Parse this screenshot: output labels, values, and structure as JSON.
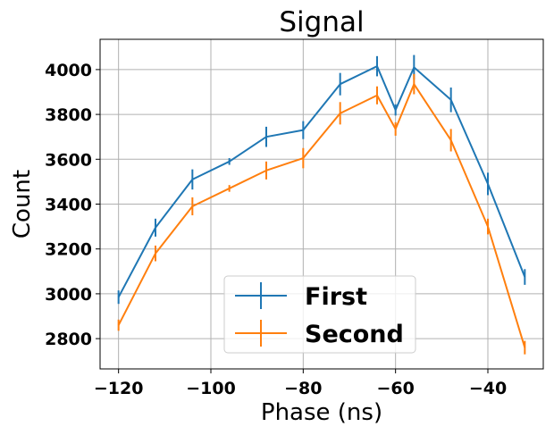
{
  "chart_data": {
    "type": "line",
    "title": "Signal",
    "xlabel": "Phase (ns)",
    "ylabel": "Count",
    "xlim": [
      -124,
      -28
    ],
    "ylim": [
      2665,
      4135
    ],
    "grid": true,
    "legend_placement": "bottom-center",
    "x_ticks": [
      -120,
      -100,
      -80,
      -60,
      -40
    ],
    "x_tick_labels": [
      "−120",
      "−100",
      "−80",
      "−60",
      "−40"
    ],
    "y_ticks": [
      2800,
      3000,
      3200,
      3400,
      3600,
      3800,
      4000
    ],
    "y_tick_labels": [
      "2800",
      "3000",
      "3200",
      "3400",
      "3600",
      "3800",
      "4000"
    ],
    "x": [
      -120,
      -112,
      -104,
      -96,
      -88,
      -80,
      -72,
      -64,
      -60,
      -56,
      -48,
      -40,
      -32
    ],
    "series": [
      {
        "name": "First",
        "color": "#1f77b4",
        "values": [
          2985,
          3295,
          3510,
          3590,
          3700,
          3730,
          3935,
          4015,
          3820,
          4010,
          3865,
          3490,
          3075
        ],
        "errors": [
          30,
          40,
          45,
          15,
          45,
          40,
          50,
          45,
          25,
          55,
          55,
          50,
          35
        ]
      },
      {
        "name": "Second",
        "color": "#ff7f0e",
        "values": [
          2860,
          3180,
          3390,
          3470,
          3550,
          3605,
          3805,
          3885,
          3735,
          3935,
          3685,
          3300,
          2760
        ],
        "errors": [
          25,
          35,
          40,
          15,
          40,
          45,
          50,
          40,
          30,
          45,
          50,
          35,
          30
        ]
      }
    ]
  }
}
